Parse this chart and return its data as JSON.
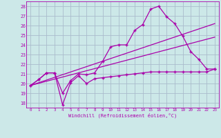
{
  "background_color": "#cce8e8",
  "grid_color": "#aabbcc",
  "line_color": "#aa00aa",
  "title": "Windchill (Refroidissement éolien,°C)",
  "xlim": [
    -0.5,
    23.5
  ],
  "ylim": [
    17.5,
    28.5
  ],
  "yticks": [
    18,
    19,
    20,
    21,
    22,
    23,
    24,
    25,
    26,
    27,
    28
  ],
  "xticks": [
    0,
    1,
    2,
    3,
    4,
    5,
    6,
    7,
    8,
    9,
    10,
    11,
    12,
    13,
    14,
    15,
    16,
    17,
    18,
    19,
    20,
    21,
    22,
    23
  ],
  "series_jagged_x": [
    0,
    1,
    2,
    3,
    4,
    5,
    6,
    7,
    8,
    9,
    10,
    11,
    12,
    13,
    14,
    15,
    16,
    17,
    18,
    19,
    20,
    21,
    22,
    23
  ],
  "series_jagged_y": [
    19.8,
    20.4,
    21.1,
    21.1,
    17.8,
    20.1,
    20.8,
    20.0,
    20.5,
    20.6,
    20.7,
    20.8,
    20.9,
    21.0,
    21.1,
    21.2,
    21.2,
    21.2,
    21.2,
    21.2,
    21.2,
    21.2,
    21.2,
    21.5
  ],
  "series_peak_x": [
    0,
    1,
    2,
    3,
    4,
    5,
    6,
    7,
    8,
    9,
    10,
    11,
    12,
    13,
    14,
    15,
    16,
    17,
    18,
    19,
    20,
    21,
    22,
    23
  ],
  "series_peak_y": [
    19.8,
    20.4,
    21.1,
    21.1,
    19.0,
    20.3,
    21.0,
    20.9,
    21.1,
    22.3,
    23.8,
    24.0,
    24.0,
    25.5,
    26.1,
    27.7,
    28.0,
    26.9,
    26.2,
    24.9,
    23.3,
    22.5,
    21.5,
    21.5
  ],
  "series_upper_line_x": [
    0,
    23
  ],
  "series_upper_line_y": [
    19.8,
    26.2
  ],
  "series_lower_line_x": [
    0,
    23
  ],
  "series_lower_line_y": [
    19.8,
    24.8
  ]
}
